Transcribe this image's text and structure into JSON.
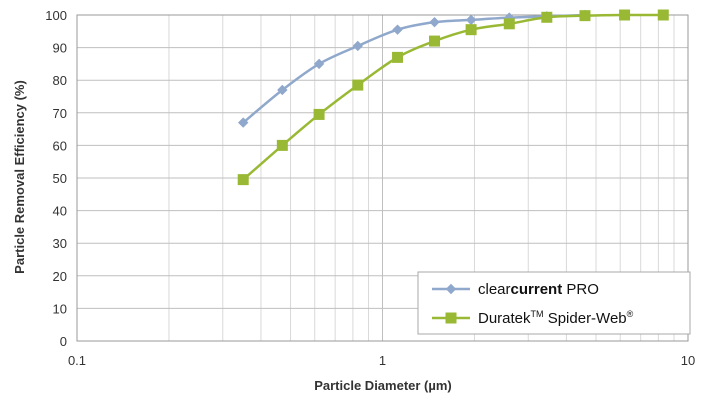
{
  "chart_data": {
    "type": "line",
    "xscale": "log",
    "xlim": [
      0.1,
      10
    ],
    "ylim": [
      0,
      100
    ],
    "xticks": [
      0.1,
      1,
      10
    ],
    "xtick_labels": [
      "0.1",
      "1",
      "10"
    ],
    "yticks": [
      0,
      10,
      20,
      30,
      40,
      50,
      60,
      70,
      80,
      90,
      100
    ],
    "xlabel": "Particle Diameter (µm)",
    "ylabel": "Particle Removal Efficiency (%)",
    "grid": true,
    "legend_position": "bottom-right",
    "series": [
      {
        "name_parts": [
          "clear",
          "current",
          " PRO"
        ],
        "color": "#8fa8cc",
        "marker": "diamond",
        "x": [
          0.35,
          0.47,
          0.62,
          0.83,
          1.12,
          1.48,
          1.95,
          2.6,
          3.45,
          4.6
        ],
        "y": [
          67,
          77,
          85,
          90.5,
          95.5,
          97.8,
          98.5,
          99.2,
          99.6,
          100
        ]
      },
      {
        "name_parts": [
          "Duratek",
          "TM",
          " Spider-Web",
          "®"
        ],
        "color": "#99b934",
        "marker": "square",
        "x": [
          0.35,
          0.47,
          0.62,
          0.83,
          1.12,
          1.48,
          1.95,
          2.6,
          3.45,
          4.6,
          6.2,
          8.3
        ],
        "y": [
          49.5,
          60,
          69.5,
          78.5,
          87,
          92,
          95.5,
          97.3,
          99.3,
          99.8,
          100,
          100
        ]
      }
    ]
  }
}
